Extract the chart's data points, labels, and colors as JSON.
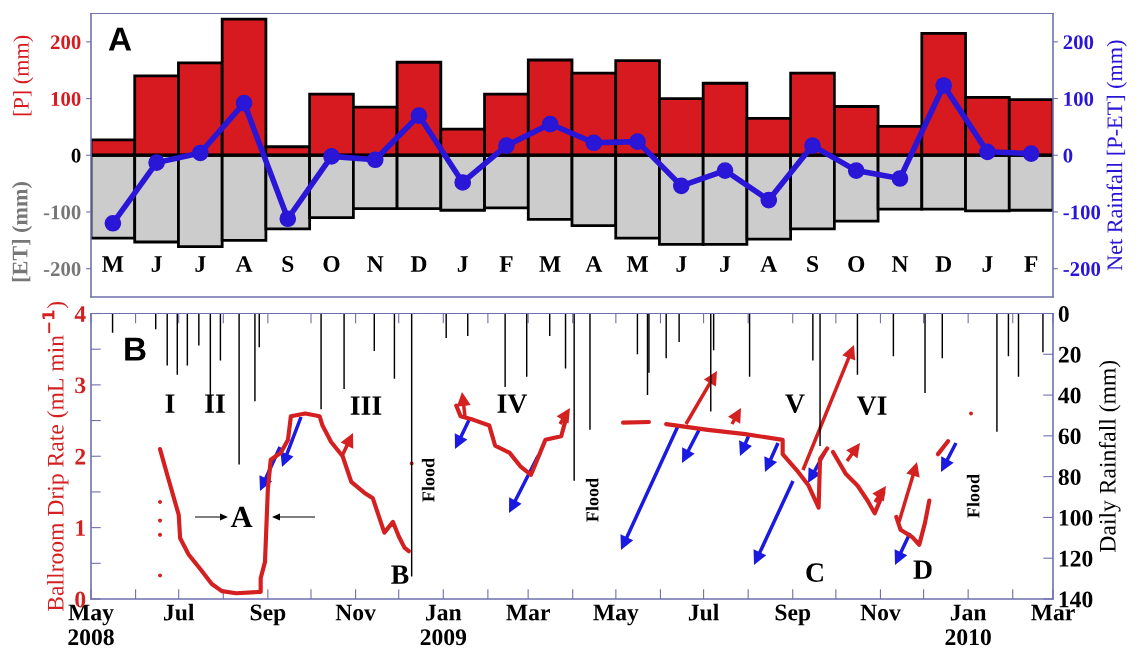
{
  "chart_data": [
    {
      "type": "bar",
      "categories": [
        "M",
        "J",
        "J",
        "A",
        "S",
        "O",
        "N",
        "D",
        "J",
        "F",
        "M",
        "A",
        "M",
        "J",
        "J",
        "A",
        "S",
        "O",
        "N",
        "D",
        "J",
        "F"
      ],
      "series": [
        {
          "color": "#d71a1f",
          "values": [
            27,
            140,
            163,
            240,
            15,
            108,
            85,
            164,
            46,
            108,
            168,
            145,
            167,
            100,
            127,
            65,
            145,
            86,
            51,
            215,
            102,
            98
          ]
        },
        {
          "color": "#cccccc",
          "values": [
            -146,
            -153,
            -161,
            -150,
            -130,
            -110,
            -94,
            -94,
            -97,
            -93,
            -113,
            -124,
            -146,
            -157,
            -157,
            -148,
            -130,
            -116,
            -95,
            -95,
            -98,
            -97
          ]
        },
        {
          "type": "line",
          "axis": "y2",
          "color": "#2a16d6",
          "marker": "circle",
          "values": [
            -120,
            -13,
            4,
            92,
            -112,
            -2,
            -8,
            70,
            -48,
            17,
            55,
            22,
            24,
            -54,
            -27,
            -79,
            17,
            -27,
            -41,
            123,
            6,
            3
          ]
        }
      ],
      "stacked": true,
      "ylim": [
        -250,
        250
      ],
      "yticks": [
        -200,
        -100,
        0,
        100,
        200
      ],
      "y2lim": [
        -250,
        250
      ],
      "y2ticks": [
        -200,
        -100,
        0,
        100,
        200
      ],
      "ylabel": "[P] (mm)",
      "y2label": "Net Rainfall [P-ET] (mm)",
      "annotations": [
        "A",
        "[ET] (mm)"
      ]
    },
    {
      "type": "line",
      "xlim": [
        "2008-05-01",
        "2010-03-01"
      ],
      "xticks": [
        {
          "value": "2008-05-01",
          "label": "May\n2008"
        },
        {
          "value": "2008-06-01",
          "label": null
        },
        {
          "value": "2008-07-01",
          "label": "Jul"
        },
        {
          "value": "2008-08-01",
          "label": null
        },
        {
          "value": "2008-09-01",
          "label": "Sep"
        },
        {
          "value": "2008-10-01",
          "label": null
        },
        {
          "value": "2008-11-01",
          "label": "Nov"
        },
        {
          "value": "2008-12-01",
          "label": null
        },
        {
          "value": "2009-01-01",
          "label": "Jan\n2009"
        },
        {
          "value": "2009-02-01",
          "label": null
        },
        {
          "value": "2009-03-01",
          "label": "Mar"
        },
        {
          "value": "2009-04-01",
          "label": null
        },
        {
          "value": "2009-05-01",
          "label": "May"
        },
        {
          "value": "2009-06-01",
          "label": null
        },
        {
          "value": "2009-07-01",
          "label": "Jul"
        },
        {
          "value": "2009-08-01",
          "label": null
        },
        {
          "value": "2009-09-01",
          "label": "Sep"
        },
        {
          "value": "2009-10-01",
          "label": null
        },
        {
          "value": "2009-11-01",
          "label": "Nov"
        },
        {
          "value": "2009-12-01",
          "label": null
        },
        {
          "value": "2010-01-01",
          "label": "Jan\n2010"
        },
        {
          "value": "2010-02-01",
          "label": null
        },
        {
          "value": "2010-03-01",
          "label": "Mar"
        }
      ],
      "ylim": [
        0,
        4
      ],
      "yticks": [
        0,
        {
          "value": 0.5,
          "label": null
        },
        1,
        {
          "value": 1.5,
          "label": null
        },
        2,
        {
          "value": 2.5,
          "label": null
        },
        3,
        {
          "value": 3.5,
          "label": null
        },
        4
      ],
      "y2lim": [
        140,
        0
      ],
      "y2ticks": [
        0,
        20,
        40,
        60,
        80,
        100,
        120,
        140
      ],
      "ylabel": "Ballroom Drip Rate (mL min$^{−1}$)",
      "y2label": "Daily Rainfall (mm)",
      "series": [
        {
          "color": "#d42020",
          "x": [
            "2008-06-18",
            "2008-06-23",
            "2008-07-01",
            "2008-07-02",
            "2008-07-08",
            "2008-07-16",
            "2008-07-24",
            "2008-07-31",
            "2008-08-10",
            "2008-08-27",
            "2008-08-27",
            "2008-08-30",
            "2008-09-01",
            "2008-09-03",
            "2008-09-10",
            "2008-09-15",
            "2008-09-17",
            "2008-09-27",
            "2008-10-07",
            "2008-10-09",
            "2008-10-15",
            "2008-10-23",
            "2008-10-29",
            "2008-11-07",
            "2008-11-13",
            "2008-11-21",
            "2008-11-27",
            "2008-12-01",
            "2008-12-05",
            "2008-12-08",
            "2008-12-20",
            "2009-01-10",
            "2009-01-13",
            "2009-01-22",
            "2009-02-02",
            "2009-02-06",
            "2009-02-16",
            "2009-02-24",
            "2009-03-03",
            "2009-03-13",
            "2009-03-24",
            "2009-03-28",
            "2009-04-15",
            "2009-05-06",
            "2009-05-24",
            "2009-05-29",
            "2009-06-05",
            "2009-07-04",
            "2009-07-30",
            "2009-08-25",
            "2009-08-25",
            "2009-09-04",
            "2009-09-12",
            "2009-09-19",
            "2009-09-20",
            "2009-09-25",
            "2009-09-27",
            "2009-09-29",
            "2009-10-08",
            "2009-10-16",
            "2009-10-23",
            "2009-10-28",
            "2009-11-03",
            "2009-11-08",
            "2009-11-12",
            "2009-11-15",
            "2009-11-23",
            "2009-11-28",
            "2009-12-02",
            "2009-12-05",
            "2009-12-08",
            "2009-12-11",
            "2009-12-18"
          ],
          "values": [
            2.1,
            1.74,
            1.18,
            0.85,
            0.62,
            0.42,
            0.21,
            0.11,
            0.08,
            0.1,
            0.29,
            0.52,
            1.54,
            1.95,
            2.05,
            2.23,
            2.56,
            2.6,
            2.56,
            2.43,
            2.2,
            2.0,
            1.64,
            1.49,
            1.41,
            0.93,
            1.08,
            0.88,
            0.72,
            0.67,
            null,
            2.71,
            2.56,
            2.51,
            2.43,
            2.15,
            2.05,
            1.85,
            1.74,
            2.23,
            2.28,
            2.58,
            null,
            2.47,
            2.48,
            null,
            2.45,
            2.37,
            2.31,
            2.23,
            2.03,
            1.8,
            1.59,
            1.28,
            1.96,
            2.11,
            null,
            2.06,
            1.75,
            1.59,
            1.38,
            1.2,
            1.49,
            null,
            1.15,
            0.97,
            0.87,
            0.76,
            1.07,
            1.38,
            null,
            2.03,
            2.21
          ]
        },
        {
          "type": "scatter",
          "color": "#d42020",
          "marker": "circle",
          "x": [
            "2008-06-18",
            "2008-06-18",
            "2008-06-18",
            "2008-06-18",
            "2008-12-10",
            "2010-01-03"
          ],
          "values": [
            1.36,
            1.1,
            0.9,
            0.33,
            1.9,
            2.6
          ]
        },
        {
          "type": "bar",
          "axis": "y2",
          "color": "#000000",
          "x": [
            "2008-05-16",
            "2008-06-15",
            "2008-06-23",
            "2008-06-30",
            "2008-07-07",
            "2008-07-15",
            "2008-07-23",
            "2008-07-30",
            "2008-08-12",
            "2008-08-23",
            "2008-08-26",
            "2008-10-08",
            "2008-10-24",
            "2008-11-14",
            "2008-11-28",
            "2008-12-10",
            "2009-01-03",
            "2009-01-18",
            "2009-02-13",
            "2009-02-28",
            "2009-03-16",
            "2009-03-27",
            "2009-04-02",
            "2009-04-13",
            "2009-05-16",
            "2009-05-23",
            "2009-05-24",
            "2009-06-05",
            "2009-06-14",
            "2009-07-06",
            "2009-07-08",
            "2009-08-02",
            "2009-09-15",
            "2009-09-20",
            "2009-10-16",
            "2009-11-10",
            "2009-12-02",
            "2009-12-14",
            "2010-01-21",
            "2010-01-29",
            "2010-02-05",
            "2010-02-22"
          ],
          "values": [
            9.5,
            7.7,
            25.5,
            30,
            25.5,
            15.7,
            40,
            23,
            74,
            43,
            16.6,
            47,
            37,
            18.4,
            32,
            129,
            12,
            11,
            36,
            31,
            11,
            27,
            82,
            57,
            20,
            40,
            29,
            22,
            14,
            48,
            18,
            31,
            23,
            65,
            30,
            21,
            39,
            22,
            58,
            21,
            31,
            19
          ]
        }
      ],
      "annotations": [
        "B",
        "I",
        "II",
        "III",
        "IV",
        "V",
        "VI",
        {
          "text": "A",
          "x": "2008-09-03",
          "y": 1.15
        },
        "B",
        "C",
        "D",
        "Flood",
        "Flood",
        "Flood"
      ]
    }
  ]
}
